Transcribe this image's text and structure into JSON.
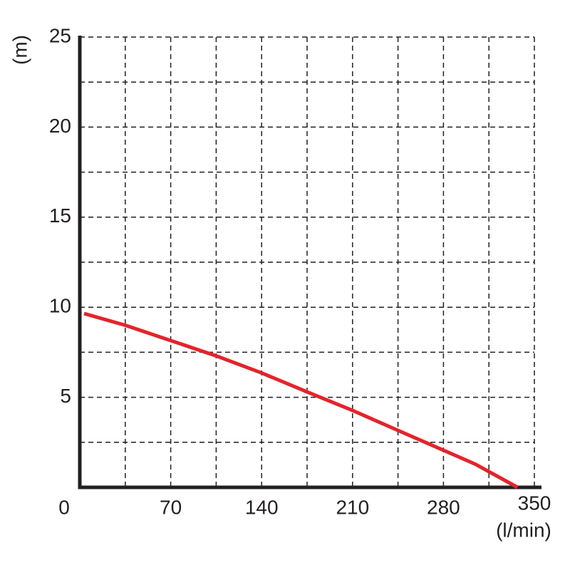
{
  "chart_data": {
    "type": "line",
    "x_label": "(l/min)",
    "y_label": "(m)",
    "x": [
      3.3,
      35,
      70,
      105,
      140,
      175,
      210,
      245,
      280,
      305,
      337
    ],
    "series": [
      {
        "color": "#e3242b",
        "values": [
          9.65,
          9.0,
          8.15,
          7.3,
          6.35,
          5.3,
          4.27,
          3.16,
          2.06,
          1.27,
          0
        ]
      }
    ],
    "xlim": [
      0,
      350
    ],
    "xticks": [
      0,
      70,
      140,
      210,
      280,
      350
    ],
    "ylim": [
      0,
      25
    ],
    "yticks": [
      0,
      5,
      10,
      15,
      20,
      25
    ],
    "grid": true
  }
}
